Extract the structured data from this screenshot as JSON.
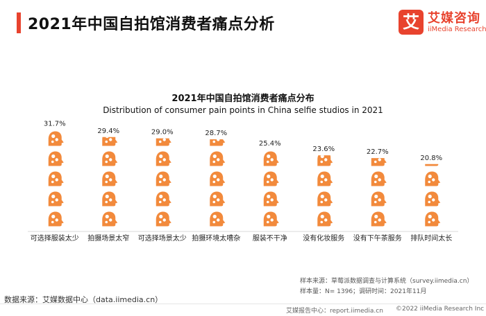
{
  "header": {
    "title": "2021年中国自拍馆消费者痛点分析",
    "logo_mark": "艾",
    "logo_cn": "艾媒咨询",
    "logo_en": "iiMedia Research"
  },
  "chart_data": {
    "type": "bar",
    "title": "2021年中国自拍馆消费者痛点分布",
    "subtitle": "Distribution of consumer pain points in China selfie studios in 2021",
    "categories": [
      "可选择服装太少",
      "拍摄场景太窄",
      "可选择场景太少",
      "拍摄环境太嘈杂",
      "服装不干净",
      "没有化妆服务",
      "没有下午茶服务",
      "排队时间太长"
    ],
    "values": [
      31.7,
      29.4,
      29.0,
      28.7,
      25.4,
      23.6,
      22.7,
      20.8
    ],
    "value_labels": [
      "31.7%",
      "29.4%",
      "29.0%",
      "28.7%",
      "25.4%",
      "23.6%",
      "22.7%",
      "20.8%"
    ],
    "unit": "%",
    "icon": "head-puzzle-icon",
    "color": "#f28a3c",
    "grid": false
  },
  "notes": {
    "sample_source": "样本来源：草莓派数据调查与计算系统（survey.iimedia.cn）",
    "sample_size": "样本量：N= 1396；调研时间：2021年11月"
  },
  "source": "数据来源：艾媒数据中心（data.iimedia.cn）",
  "footer": {
    "report": "艾媒报告中心：report.iimedia.cn",
    "copyright": "©2022  iiMedia Research  Inc"
  },
  "colors": {
    "accent": "#e8432e",
    "bar": "#f28a3c"
  }
}
